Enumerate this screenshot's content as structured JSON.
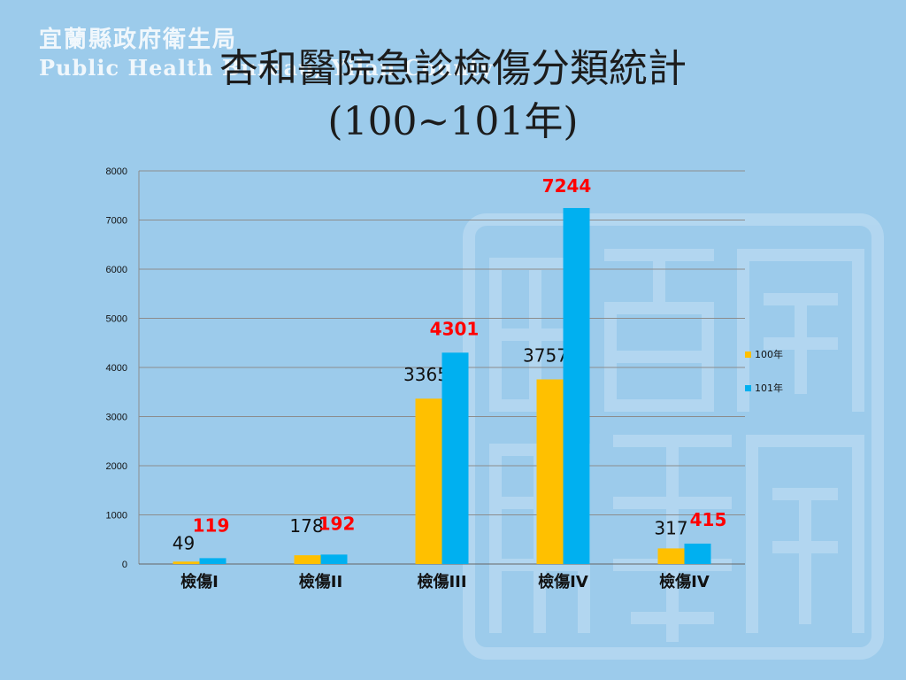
{
  "header": {
    "org_zh": "宜蘭縣政府衛生局",
    "org_en": "Public Health Bureau, Yilan County"
  },
  "title": {
    "line1": "杏和醫院急診檢傷分類統計",
    "line2": "(100~101年)"
  },
  "colors": {
    "background": "#9ccbeb",
    "series_100": "#ffc000",
    "series_101": "#00b0f0",
    "label_100": "#111111",
    "label_101": "#ff0000",
    "grid": "#8c8c8c"
  },
  "chart_data": {
    "type": "bar",
    "title": "杏和醫院急診檢傷分類統計 (100~101年)",
    "categories": [
      "檢傷I",
      "檢傷II",
      "檢傷III",
      "檢傷IV",
      "檢傷IV"
    ],
    "series": [
      {
        "name": "100年",
        "values": [
          49,
          178,
          3365,
          3757,
          317
        ]
      },
      {
        "name": "101年",
        "values": [
          119,
          192,
          4301,
          7244,
          415
        ]
      }
    ],
    "ylim": [
      0,
      8000
    ],
    "yticks": [
      0,
      1000,
      2000,
      3000,
      4000,
      5000,
      6000,
      7000,
      8000
    ],
    "grid": true,
    "legend": "right"
  }
}
